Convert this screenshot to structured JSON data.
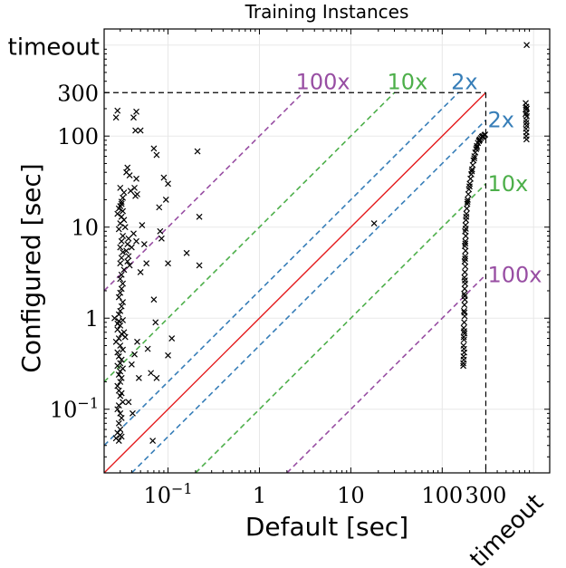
{
  "chart_data": {
    "type": "scatter",
    "title": "Training Instances",
    "xlabel": "Default [sec]",
    "ylabel": "Configured [sec]",
    "xscale": "log",
    "yscale": "log",
    "xlim": [
      0.02,
      1500
    ],
    "ylim": [
      0.02,
      1500
    ],
    "cutoff": 300,
    "timeout_value": 1000,
    "grid": true,
    "x_ticks": [
      {
        "value": 0.1,
        "base": "10",
        "exp": "−1"
      },
      {
        "value": 1,
        "base": "1",
        "exp": ""
      },
      {
        "value": 10,
        "base": "10",
        "exp": ""
      },
      {
        "value": 100,
        "base": "100",
        "exp": ""
      },
      {
        "value": 300,
        "base": "300",
        "exp": ""
      }
    ],
    "y_ticks": [
      {
        "value": 0.1,
        "base": "10",
        "exp": "−1"
      },
      {
        "value": 1,
        "base": "1",
        "exp": ""
      },
      {
        "value": 10,
        "base": "10",
        "exp": ""
      },
      {
        "value": 100,
        "base": "100",
        "exp": ""
      },
      {
        "value": 300,
        "base": "300",
        "exp": ""
      }
    ],
    "timeout_label": "timeout",
    "ratio_lines": [
      {
        "factor": 2,
        "label": "2x",
        "color": "#377eb8"
      },
      {
        "factor": 10,
        "label": "10x",
        "color": "#4daf4a"
      },
      {
        "factor": 100,
        "label": "100x",
        "color": "#984ea3"
      }
    ],
    "diagonal_color": "#e41a1c",
    "marker": "x",
    "points": [
      [
        0.028,
        0.87
      ],
      [
        0.029,
        0.93
      ],
      [
        0.03,
        0.83
      ],
      [
        0.028,
        0.75
      ],
      [
        0.031,
        0.67
      ],
      [
        0.029,
        0.6
      ],
      [
        0.027,
        0.55
      ],
      [
        0.03,
        0.5
      ],
      [
        0.032,
        0.45
      ],
      [
        0.028,
        0.42
      ],
      [
        0.029,
        0.38
      ],
      [
        0.031,
        0.35
      ],
      [
        0.03,
        0.32
      ],
      [
        0.028,
        0.3
      ],
      [
        0.032,
        0.28
      ],
      [
        0.03,
        0.26
      ],
      [
        0.029,
        0.24
      ],
      [
        0.031,
        0.22
      ],
      [
        0.03,
        0.2
      ],
      [
        0.028,
        0.18
      ],
      [
        0.029,
        0.16
      ],
      [
        0.031,
        0.15
      ],
      [
        0.03,
        0.14
      ],
      [
        0.032,
        0.12
      ],
      [
        0.029,
        0.11
      ],
      [
        0.028,
        0.1
      ],
      [
        0.03,
        0.09
      ],
      [
        0.031,
        0.08
      ],
      [
        0.029,
        0.07
      ],
      [
        0.03,
        0.06
      ],
      [
        0.028,
        0.055
      ],
      [
        0.031,
        0.05
      ],
      [
        0.029,
        0.045
      ],
      [
        0.027,
        0.048
      ],
      [
        0.03,
        0.052
      ],
      [
        0.033,
        0.7
      ],
      [
        0.034,
        0.62
      ],
      [
        0.032,
        0.95
      ],
      [
        0.026,
        1.0
      ],
      [
        0.029,
        1.1
      ],
      [
        0.03,
        1.2
      ],
      [
        0.031,
        1.35
      ],
      [
        0.032,
        1.5
      ],
      [
        0.029,
        1.7
      ],
      [
        0.03,
        1.9
      ],
      [
        0.031,
        2.1
      ],
      [
        0.032,
        2.4
      ],
      [
        0.03,
        2.7
      ],
      [
        0.031,
        3.0
      ],
      [
        0.033,
        3.4
      ],
      [
        0.03,
        4.0
      ],
      [
        0.031,
        4.6
      ],
      [
        0.032,
        5.3
      ],
      [
        0.03,
        6.0
      ],
      [
        0.031,
        7.0
      ],
      [
        0.032,
        8.0
      ],
      [
        0.029,
        9.5
      ],
      [
        0.03,
        11
      ],
      [
        0.031,
        13
      ],
      [
        0.032,
        15
      ],
      [
        0.03,
        17
      ],
      [
        0.031,
        19
      ],
      [
        0.032,
        21
      ],
      [
        0.033,
        24
      ],
      [
        0.03,
        27
      ],
      [
        0.031,
        18
      ],
      [
        0.029,
        16
      ],
      [
        0.028,
        14
      ],
      [
        0.033,
        12
      ],
      [
        0.034,
        10
      ],
      [
        0.028,
        190
      ],
      [
        0.027,
        160
      ],
      [
        0.036,
        45
      ],
      [
        0.035,
        40
      ],
      [
        0.038,
        37
      ],
      [
        0.045,
        34
      ],
      [
        0.046,
        23
      ],
      [
        0.044,
        22
      ],
      [
        0.043,
        27
      ],
      [
        0.039,
        25
      ],
      [
        0.042,
        160
      ],
      [
        0.044,
        115
      ],
      [
        0.05,
        115
      ],
      [
        0.045,
        185
      ],
      [
        0.037,
        7.5
      ],
      [
        0.036,
        6.5
      ],
      [
        0.035,
        5.5
      ],
      [
        0.037,
        4.8
      ],
      [
        0.036,
        4.2
      ],
      [
        0.038,
        3.8
      ],
      [
        0.042,
        8.5
      ],
      [
        0.045,
        7.0
      ],
      [
        0.04,
        6.0
      ],
      [
        0.052,
        10.5
      ],
      [
        0.055,
        6.5
      ],
      [
        0.058,
        4.0
      ],
      [
        0.05,
        3.2
      ],
      [
        0.07,
        73
      ],
      [
        0.075,
        62
      ],
      [
        0.09,
        35
      ],
      [
        0.1,
        30
      ],
      [
        0.095,
        20
      ],
      [
        0.08,
        16.5
      ],
      [
        0.07,
        1.6
      ],
      [
        0.073,
        0.9
      ],
      [
        0.082,
        9.0
      ],
      [
        0.085,
        7.5
      ],
      [
        0.1,
        4.0
      ],
      [
        0.21,
        68
      ],
      [
        0.22,
        13
      ],
      [
        0.22,
        3.8
      ],
      [
        0.16,
        5.2
      ],
      [
        0.11,
        0.6
      ],
      [
        0.1,
        0.39
      ],
      [
        0.06,
        0.46
      ],
      [
        0.048,
        0.22
      ],
      [
        0.04,
        0.31
      ],
      [
        0.043,
        0.4
      ],
      [
        0.046,
        0.55
      ],
      [
        0.065,
        0.25
      ],
      [
        0.068,
        0.045
      ],
      [
        0.075,
        0.22
      ],
      [
        0.041,
        0.09
      ],
      [
        0.037,
        0.12
      ],
      [
        18.0,
        11.0
      ],
      [
        170,
        0.3
      ],
      [
        172,
        0.35
      ],
      [
        174,
        0.42
      ],
      [
        171,
        0.5
      ],
      [
        173,
        0.58
      ],
      [
        175,
        0.68
      ],
      [
        172,
        0.78
      ],
      [
        174,
        0.9
      ],
      [
        176,
        1.05
      ],
      [
        173,
        1.2
      ],
      [
        175,
        1.4
      ],
      [
        177,
        1.6
      ],
      [
        174,
        1.85
      ],
      [
        176,
        2.1
      ],
      [
        178,
        2.4
      ],
      [
        175,
        2.8
      ],
      [
        177,
        3.2
      ],
      [
        179,
        3.7
      ],
      [
        176,
        4.2
      ],
      [
        178,
        4.8
      ],
      [
        180,
        5.5
      ],
      [
        177,
        6.2
      ],
      [
        179,
        7.0
      ],
      [
        181,
        8.0
      ],
      [
        178,
        9.0
      ],
      [
        180,
        10.5
      ],
      [
        182,
        12
      ],
      [
        184,
        14
      ],
      [
        186,
        16
      ],
      [
        188,
        18
      ],
      [
        190,
        20
      ],
      [
        193,
        23
      ],
      [
        196,
        26
      ],
      [
        200,
        30
      ],
      [
        204,
        34
      ],
      [
        208,
        38
      ],
      [
        212,
        43
      ],
      [
        216,
        48
      ],
      [
        220,
        54
      ],
      [
        225,
        60
      ],
      [
        230,
        66
      ],
      [
        235,
        72
      ],
      [
        240,
        78
      ],
      [
        246,
        84
      ],
      [
        252,
        88
      ],
      [
        258,
        92
      ],
      [
        265,
        95
      ],
      [
        272,
        98
      ],
      [
        280,
        100
      ],
      [
        290,
        102
      ],
      [
        170,
        0.32
      ],
      [
        171,
        0.38
      ],
      [
        173,
        0.46
      ],
      [
        172,
        0.62
      ],
      [
        174,
        0.72
      ],
      [
        175,
        1.15
      ],
      [
        176,
        1.75
      ],
      [
        177,
        2.6
      ],
      [
        178,
        4.5
      ],
      [
        179,
        6.6
      ],
      [
        181,
        9.6
      ],
      [
        183,
        13
      ],
      [
        189,
        19
      ],
      [
        199,
        28
      ],
      [
        211,
        41
      ],
      [
        224,
        57
      ],
      [
        239,
        75
      ],
      [
        255,
        90
      ],
      [
        275,
        99
      ],
      [
        295,
        104
      ],
      [
        840,
        1000
      ],
      [
        820,
        230
      ],
      [
        830,
        210
      ],
      [
        825,
        195
      ],
      [
        835,
        180
      ],
      [
        840,
        165
      ],
      [
        828,
        150
      ],
      [
        832,
        140
      ],
      [
        838,
        130
      ],
      [
        826,
        120
      ],
      [
        834,
        110
      ],
      [
        830,
        100
      ],
      [
        836,
        92
      ],
      [
        842,
        200
      ],
      [
        818,
        175
      ]
    ]
  }
}
